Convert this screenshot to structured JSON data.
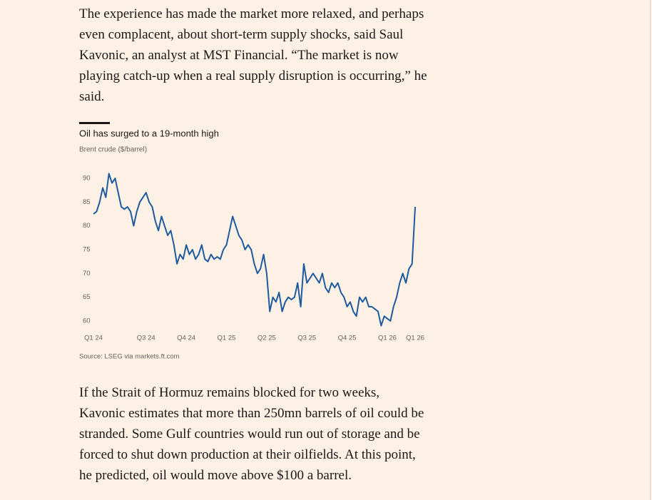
{
  "paragraphs": [
    "The experience has made the market more relaxed, and perhaps even complacent, about short-term supply shocks, said Saul Kavonic, an analyst at MST Financial. “The market is now playing catch-up when a real supply disruption is occurring,” he said.",
    "If the Strait of Hormuz remains blocked for two weeks, Kavonic estimates that more than 250mn barrels of oil could be stranded. Some Gulf countries would run out of storage and be forced to shut down production at their oilfields. At this point, he predicted, oil would move above $100 a barrel."
  ],
  "chart_data": {
    "type": "line",
    "title": "Oil has surged to a 19-month high",
    "subtitle": "Brent crude ($/barrel)",
    "source": "Source: LSEG via markets.ft.com",
    "color": "#1d5a9e",
    "grid": false,
    "categories": [
      "Q1 24",
      null,
      null,
      null,
      null,
      null,
      null,
      null,
      null,
      null,
      null,
      null,
      null,
      null,
      null,
      null,
      null,
      "Q3 24",
      null,
      null,
      null,
      null,
      null,
      null,
      null,
      null,
      null,
      null,
      null,
      null,
      "Q4 24",
      null,
      null,
      null,
      null,
      null,
      null,
      null,
      null,
      null,
      null,
      null,
      null,
      "Q1 25",
      null,
      null,
      null,
      null,
      null,
      null,
      null,
      null,
      null,
      null,
      null,
      null,
      "Q2 25",
      null,
      null,
      null,
      null,
      null,
      null,
      null,
      null,
      null,
      null,
      null,
      null,
      "Q3 25",
      null,
      null,
      null,
      null,
      null,
      null,
      null,
      null,
      null,
      null,
      null,
      null,
      "Q4 25",
      null,
      null,
      null,
      null,
      null,
      null,
      null,
      null,
      null,
      null,
      null,
      null,
      "Q1 26",
      null,
      null,
      null,
      null,
      null,
      null,
      null,
      null,
      "Q1 26"
    ],
    "values": [
      82.5,
      83,
      85,
      88,
      86,
      91,
      89,
      90,
      87,
      84,
      83.5,
      84,
      83,
      80,
      83,
      85,
      86,
      87,
      85,
      84,
      81,
      79,
      82,
      80,
      78,
      79,
      76,
      72,
      74,
      73,
      76,
      74,
      75,
      73,
      74,
      76,
      73,
      72.5,
      74,
      73,
      73.5,
      73,
      75,
      76,
      79,
      82,
      80,
      78,
      77,
      75,
      76,
      75,
      72,
      70,
      71,
      74,
      70,
      62,
      65,
      64,
      66,
      62,
      64,
      65,
      64.5,
      65,
      68,
      63,
      72,
      68,
      69,
      70,
      69,
      68,
      70,
      67,
      66,
      68,
      67,
      68,
      66,
      65,
      63,
      64,
      62,
      61,
      65,
      64,
      65,
      63,
      63,
      62.5,
      62,
      59,
      61,
      60.5,
      60,
      63,
      65,
      68,
      70,
      68,
      71,
      72,
      84
    ],
    "ylim": [
      58.8,
      91.5
    ],
    "yticks": [
      60,
      65,
      70,
      75,
      80,
      85,
      90
    ]
  }
}
